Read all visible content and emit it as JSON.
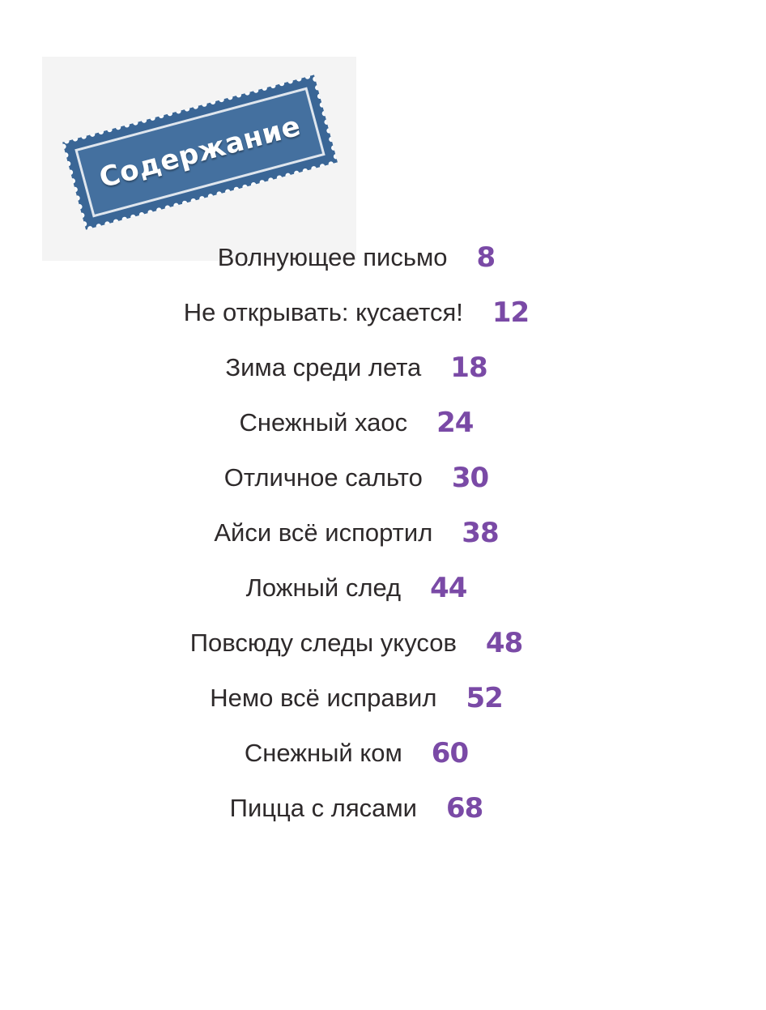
{
  "header": {
    "title": "Содержание",
    "stamp_color": "#3a6696",
    "stamp_inner_color": "#44709f",
    "stamp_border_color": "#dfe6ee"
  },
  "toc": {
    "page_color": "#7a4aa6",
    "items": [
      {
        "title": "Волнующее письмо",
        "page": "8"
      },
      {
        "title": "Не открывать: кусается!",
        "page": "12"
      },
      {
        "title": "Зима среди лета",
        "page": "18"
      },
      {
        "title": "Снежный хаос",
        "page": "24"
      },
      {
        "title": "Отличное сальто",
        "page": "30"
      },
      {
        "title": "Айси всё испортил",
        "page": "38"
      },
      {
        "title": "Ложный след",
        "page": "44"
      },
      {
        "title": "Повсюду следы укусов",
        "page": "48"
      },
      {
        "title": "Немо всё исправил",
        "page": "52"
      },
      {
        "title": "Снежный ком",
        "page": "60"
      },
      {
        "title": "Пицца с лясами",
        "page": "68"
      }
    ]
  }
}
